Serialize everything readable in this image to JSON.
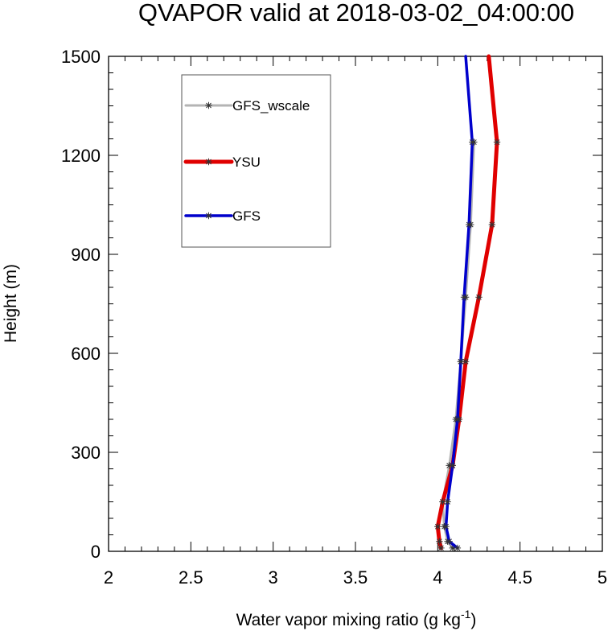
{
  "chart_data": {
    "type": "line",
    "title": "QVAPOR valid at 2018-03-02_04:00:00",
    "xlabel": "Water vapor mixing ratio (g kg",
    "xlabel_sup": "-1",
    "xlabel_end": ")",
    "ylabel": "Height (m)",
    "xlim": [
      2,
      5
    ],
    "ylim": [
      0,
      1500
    ],
    "xticks": [
      2,
      2.5,
      3,
      3.5,
      4,
      4.5,
      5
    ],
    "xtick_labels": [
      "2",
      "2.5",
      "3",
      "3.5",
      "4",
      "4.5",
      "5"
    ],
    "yticks": [
      0,
      300,
      600,
      900,
      1200,
      1500
    ],
    "ytick_labels": [
      "0",
      "300",
      "600",
      "900",
      "1200",
      "1500"
    ],
    "grid": false,
    "legend_position": "top-left",
    "marker": "asterisk",
    "series": [
      {
        "name": "GFS_wscale",
        "color": "#b4b4b4",
        "points": [
          [
            4.09,
            10
          ],
          [
            4.06,
            30
          ],
          [
            4.04,
            75
          ],
          [
            4.03,
            150
          ],
          [
            4.07,
            260
          ],
          [
            4.11,
            400
          ],
          [
            4.14,
            575
          ],
          [
            4.17,
            770
          ],
          [
            4.2,
            990
          ],
          [
            4.22,
            1240
          ]
        ]
      },
      {
        "name": "YSU",
        "color": "#e00000",
        "points": [
          [
            4.02,
            10
          ],
          [
            4.01,
            30
          ],
          [
            4.0,
            75
          ],
          [
            4.03,
            150
          ],
          [
            4.09,
            260
          ],
          [
            4.13,
            400
          ],
          [
            4.17,
            575
          ],
          [
            4.25,
            770
          ],
          [
            4.33,
            990
          ],
          [
            4.36,
            1240
          ],
          [
            4.31,
            1500
          ]
        ]
      },
      {
        "name": "GFS",
        "color": "#0000cc",
        "points": [
          [
            4.12,
            10
          ],
          [
            4.07,
            30
          ],
          [
            4.05,
            75
          ],
          [
            4.06,
            150
          ],
          [
            4.09,
            260
          ],
          [
            4.12,
            400
          ],
          [
            4.14,
            575
          ],
          [
            4.16,
            770
          ],
          [
            4.19,
            990
          ],
          [
            4.21,
            1240
          ],
          [
            4.17,
            1500
          ]
        ]
      }
    ]
  }
}
